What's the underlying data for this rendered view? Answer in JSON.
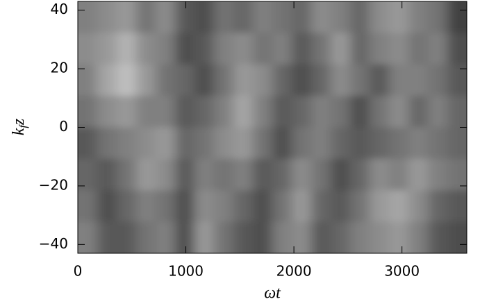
{
  "chart_data": {
    "type": "heatmap",
    "xlabel": "ωt",
    "ylabel": [
      "k",
      "f",
      "z"
    ],
    "xlim": [
      0,
      3600
    ],
    "ylim": [
      -43,
      43
    ],
    "xticks": [
      0,
      1000,
      2000,
      3000
    ],
    "yticks": [
      {
        "value": -40,
        "label": "−40"
      },
      {
        "value": -20,
        "label": "−20"
      },
      0,
      20,
      40
    ],
    "values": [
      [
        0.5,
        0.55,
        0.6,
        0.45,
        0.55,
        0.35,
        0.3,
        0.45,
        0.4,
        0.5,
        0.45,
        0.4,
        0.55,
        0.5,
        0.4,
        0.55,
        0.6,
        0.5,
        0.45,
        0.25
      ],
      [
        0.55,
        0.6,
        0.7,
        0.55,
        0.5,
        0.3,
        0.35,
        0.5,
        0.55,
        0.45,
        0.5,
        0.35,
        0.45,
        0.6,
        0.4,
        0.5,
        0.55,
        0.45,
        0.5,
        0.3
      ],
      [
        0.5,
        0.65,
        0.75,
        0.6,
        0.45,
        0.4,
        0.3,
        0.45,
        0.6,
        0.55,
        0.4,
        0.3,
        0.4,
        0.55,
        0.45,
        0.35,
        0.5,
        0.5,
        0.45,
        0.35
      ],
      [
        0.45,
        0.55,
        0.6,
        0.5,
        0.5,
        0.35,
        0.4,
        0.5,
        0.65,
        0.5,
        0.35,
        0.4,
        0.5,
        0.45,
        0.3,
        0.45,
        0.55,
        0.4,
        0.5,
        0.4
      ],
      [
        0.35,
        0.45,
        0.5,
        0.55,
        0.6,
        0.4,
        0.45,
        0.55,
        0.6,
        0.45,
        0.3,
        0.45,
        0.5,
        0.4,
        0.35,
        0.4,
        0.45,
        0.5,
        0.45,
        0.4
      ],
      [
        0.4,
        0.35,
        0.45,
        0.6,
        0.55,
        0.35,
        0.5,
        0.45,
        0.5,
        0.35,
        0.4,
        0.55,
        0.45,
        0.3,
        0.4,
        0.55,
        0.5,
        0.6,
        0.5,
        0.45
      ],
      [
        0.45,
        0.3,
        0.4,
        0.5,
        0.45,
        0.3,
        0.55,
        0.5,
        0.4,
        0.3,
        0.45,
        0.6,
        0.4,
        0.35,
        0.45,
        0.6,
        0.65,
        0.55,
        0.4,
        0.35
      ],
      [
        0.5,
        0.35,
        0.35,
        0.45,
        0.5,
        0.3,
        0.6,
        0.45,
        0.35,
        0.3,
        0.5,
        0.55,
        0.35,
        0.4,
        0.5,
        0.55,
        0.6,
        0.5,
        0.35,
        0.3
      ]
    ]
  }
}
